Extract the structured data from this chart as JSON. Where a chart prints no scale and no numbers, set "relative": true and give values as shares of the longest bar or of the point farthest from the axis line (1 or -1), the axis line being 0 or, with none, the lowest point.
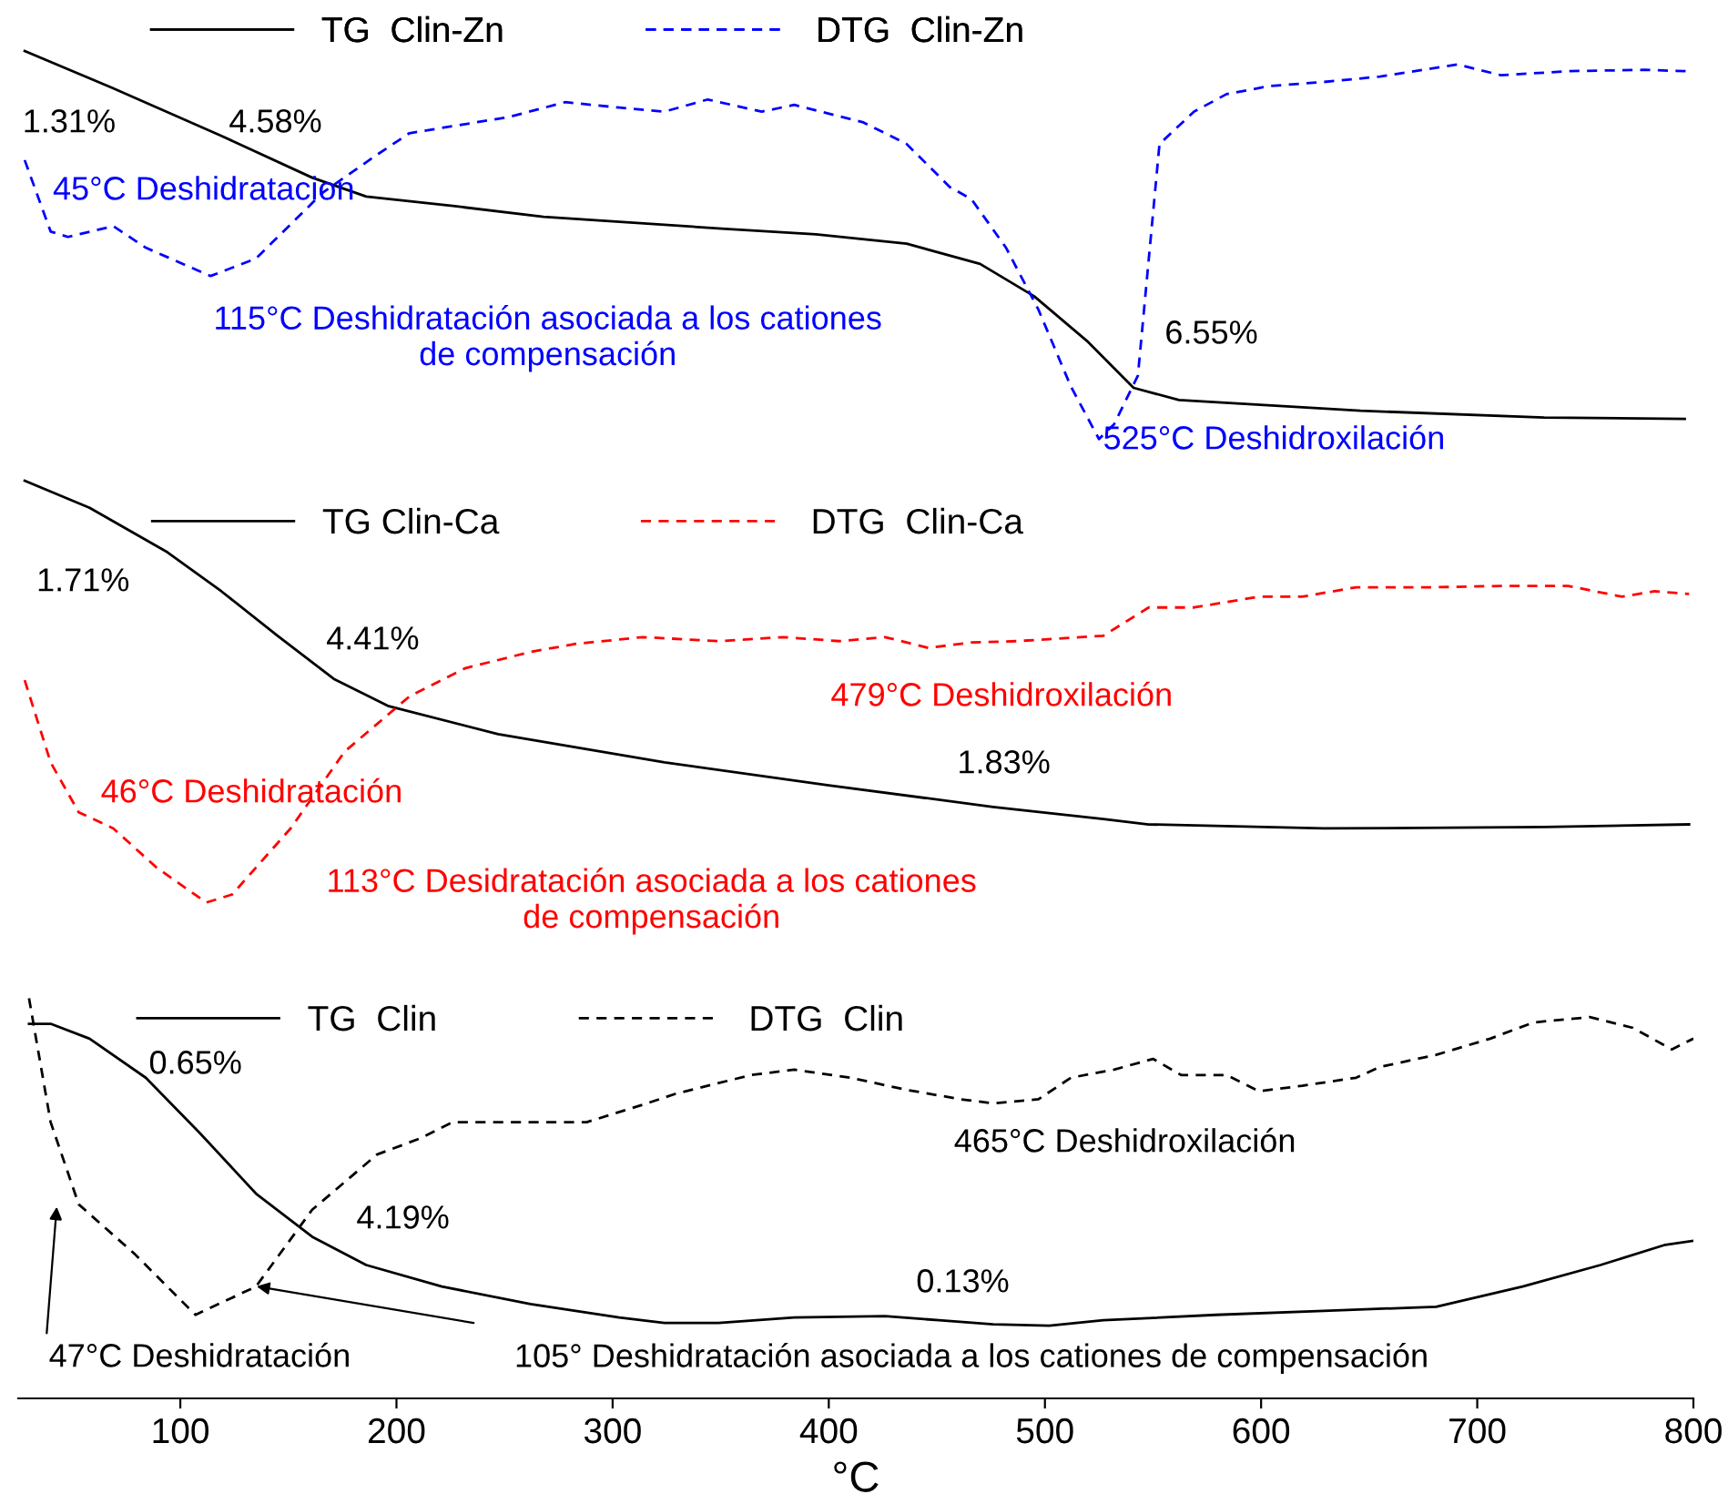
{
  "chart_data": {
    "type": "line",
    "relative": true,
    "xlim": [
      25,
      800
    ],
    "xticks": [
      100,
      200,
      300,
      400,
      500,
      600,
      700,
      800
    ],
    "xlabel": "°C",
    "legend": "top",
    "series": [
      {
        "name": "TG  Clin-Zn",
        "color": "#000000",
        "line_style": "solid",
        "x": [
          28,
          68,
          119,
          161,
          186,
          226,
          268,
          352,
          394,
          436,
          470,
          495,
          520,
          541,
          562,
          646,
          731,
          796
        ],
        "values": [
          1.0,
          0.973,
          0.937,
          0.906,
          0.892,
          0.885,
          0.877,
          0.868,
          0.864,
          0.857,
          0.842,
          0.818,
          0.784,
          0.75,
          0.741,
          0.733,
          0.728,
          0.727
        ]
      },
      {
        "name": "DTG  Clin-Zn",
        "color": "#0000ff",
        "line_style": "dashed",
        "x": [
          28,
          40,
          48,
          69,
          84,
          114,
          135,
          166,
          191,
          206,
          252,
          278,
          303,
          324,
          344,
          369,
          384,
          416,
          436,
          456,
          466,
          482,
          497,
          512,
          525,
          532,
          543,
          553,
          569,
          584,
          604,
          629,
          655,
          691,
          711,
          742,
          777,
          797
        ],
        "values": [
          0.919,
          0.866,
          0.862,
          0.87,
          0.854,
          0.833,
          0.846,
          0.895,
          0.923,
          0.939,
          0.951,
          0.962,
          0.958,
          0.955,
          0.964,
          0.955,
          0.96,
          0.947,
          0.931,
          0.899,
          0.89,
          0.854,
          0.808,
          0.751,
          0.712,
          0.723,
          0.759,
          0.931,
          0.955,
          0.968,
          0.974,
          0.977,
          0.981,
          0.99,
          0.982,
          0.985,
          0.986,
          0.985
        ]
      },
      {
        "name": "TG Clin-Ca",
        "color": "#000000",
        "line_style": "solid",
        "x": [
          28,
          58,
          94,
          119,
          145,
          171,
          196,
          247,
          324,
          400,
          476,
          527,
          548,
          629,
          731,
          798
        ],
        "values": [
          0.681,
          0.661,
          0.628,
          0.599,
          0.566,
          0.534,
          0.514,
          0.493,
          0.472,
          0.455,
          0.439,
          0.43,
          0.426,
          0.423,
          0.424,
          0.426
        ]
      },
      {
        "name": "DTG  Clin-Ca",
        "color": "#ff0000",
        "line_style": "dashed",
        "x": [
          28,
          40,
          53,
          69,
          89,
          112,
          124,
          151,
          176,
          206,
          232,
          262,
          283,
          314,
          349,
          379,
          405,
          426,
          446,
          466,
          487,
          527,
          548,
          569,
          584,
          599,
          619,
          644,
          681,
          711,
          742,
          767,
          782,
          798
        ],
        "values": [
          0.533,
          0.472,
          0.435,
          0.423,
          0.394,
          0.368,
          0.374,
          0.423,
          0.48,
          0.521,
          0.542,
          0.554,
          0.56,
          0.565,
          0.562,
          0.565,
          0.562,
          0.565,
          0.557,
          0.561,
          0.562,
          0.566,
          0.587,
          0.587,
          0.591,
          0.595,
          0.595,
          0.602,
          0.602,
          0.603,
          0.603,
          0.595,
          0.599,
          0.597
        ]
      },
      {
        "name": "TG  Clin",
        "color": "#000000",
        "line_style": "solid",
        "x": [
          30,
          40,
          58,
          84,
          109,
          135,
          161,
          186,
          221,
          262,
          303,
          324,
          349,
          384,
          426,
          451,
          476,
          502,
          527,
          579,
          629,
          681,
          721,
          757,
          787,
          800
        ],
        "values": [
          0.278,
          0.278,
          0.267,
          0.238,
          0.197,
          0.152,
          0.12,
          0.099,
          0.083,
          0.07,
          0.06,
          0.056,
          0.056,
          0.06,
          0.061,
          0.058,
          0.055,
          0.054,
          0.058,
          0.062,
          0.065,
          0.068,
          0.083,
          0.099,
          0.114,
          0.117
        ]
      },
      {
        "name": "DTG  Clin",
        "color": "#000000",
        "line_style": "dashed",
        "x": [
          30,
          40,
          53,
          79,
          107,
          135,
          161,
          191,
          211,
          226,
          257,
          288,
          314,
          329,
          364,
          384,
          410,
          436,
          461,
          476,
          497,
          512,
          532,
          550,
          563,
          584,
          599,
          619,
          644,
          655,
          681,
          706,
          726,
          752,
          772,
          790,
          800
        ],
        "values": [
          0.297,
          0.205,
          0.144,
          0.107,
          0.062,
          0.083,
          0.14,
          0.181,
          0.193,
          0.205,
          0.205,
          0.205,
          0.218,
          0.226,
          0.24,
          0.244,
          0.238,
          0.229,
          0.222,
          0.219,
          0.222,
          0.238,
          0.244,
          0.252,
          0.24,
          0.24,
          0.228,
          0.232,
          0.238,
          0.246,
          0.255,
          0.267,
          0.279,
          0.283,
          0.275,
          0.259,
          0.267
        ]
      }
    ],
    "annotations": [
      "1.31%",
      "4.58%",
      "45°C Deshidratacion",
      "115°C Deshidratación asociada a los cationes\nde compensación",
      "6.55%",
      "525°C Deshidroxilación",
      "1.71%",
      "4.41%",
      "479°C Deshidroxilación",
      "46°C Deshidratación",
      "1.83%",
      "113°C Desidratación asociada a los cationes\nde compensación",
      "0.65%",
      "4.19%",
      "0.13%",
      "465°C Deshidroxilación",
      "47°C Deshidratación",
      "105° Deshidratación asociada a los cationes de compensación"
    ]
  }
}
